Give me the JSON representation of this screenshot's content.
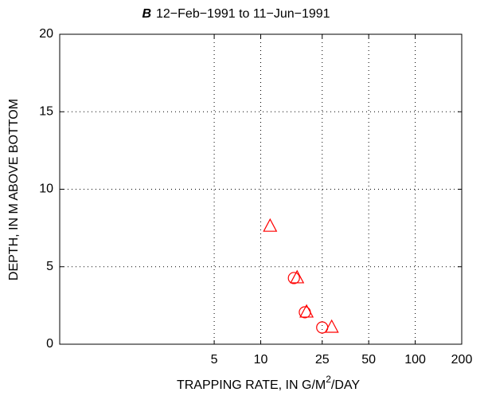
{
  "chart_data": {
    "type": "scatter",
    "title_prefix": "B",
    "title": "12−Feb−1991 to 11−Jun−1991",
    "x_label": [
      "TRAPPING RATE, IN G/M",
      "2",
      "/DAY"
    ],
    "y_label": "DEPTH, IN M ABOVE BOTTOM",
    "x_scale": "log",
    "xlim": [
      0.5,
      200
    ],
    "xticks": [
      5,
      10,
      25,
      50,
      100,
      200
    ],
    "ylim": [
      0,
      20
    ],
    "yticks": [
      0,
      5,
      10,
      15,
      20
    ],
    "grid": true,
    "series": [
      {
        "marker": "circle",
        "color": "#ff0000",
        "x": [
          16.4,
          19.3,
          25
        ],
        "values": [
          4.27,
          2.06,
          1.08
        ]
      },
      {
        "marker": "triangle",
        "color": "#ff0000",
        "x": [
          11.5,
          17.2,
          19.8,
          28.8
        ],
        "values": [
          7.6,
          4.27,
          2.06,
          1.08
        ]
      }
    ]
  }
}
